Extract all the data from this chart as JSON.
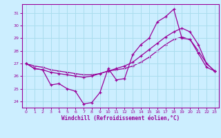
{
  "background_color": "#cceeff",
  "grid_color": "#aaddee",
  "line_color": "#990099",
  "ylim": [
    23.5,
    31.7
  ],
  "xlim": [
    -0.5,
    23.5
  ],
  "yticks": [
    24,
    25,
    26,
    27,
    28,
    29,
    30,
    31
  ],
  "xticks": [
    0,
    1,
    2,
    3,
    4,
    5,
    6,
    7,
    8,
    9,
    10,
    11,
    12,
    13,
    14,
    15,
    16,
    17,
    18,
    19,
    20,
    21,
    22,
    23
  ],
  "xlabel": "Windchill (Refroidissement éolien,°C)",
  "series1_x": [
    0,
    1,
    2,
    3,
    4,
    5,
    6,
    7,
    8,
    9,
    10,
    11,
    12,
    13,
    14,
    15,
    16,
    17,
    18,
    19,
    20,
    21,
    22,
    23
  ],
  "series1_y": [
    27.0,
    26.6,
    26.5,
    25.3,
    25.4,
    25.0,
    24.8,
    23.8,
    23.9,
    24.7,
    26.6,
    25.7,
    25.8,
    27.7,
    28.5,
    29.0,
    30.3,
    30.7,
    31.3,
    29.0,
    28.9,
    27.8,
    26.7,
    26.4
  ],
  "series2_x": [
    0,
    1,
    2,
    3,
    4,
    5,
    6,
    7,
    8,
    9,
    10,
    11,
    12,
    13,
    14,
    15,
    16,
    17,
    18,
    19,
    20,
    21,
    22,
    23
  ],
  "series2_y": [
    27.0,
    26.6,
    26.5,
    26.3,
    26.2,
    26.1,
    26.0,
    25.9,
    26.0,
    26.2,
    26.4,
    26.6,
    26.8,
    27.1,
    27.6,
    28.1,
    28.6,
    29.1,
    29.5,
    29.8,
    29.5,
    28.5,
    27.0,
    26.4
  ],
  "series3_x": [
    0,
    1,
    2,
    3,
    4,
    5,
    6,
    7,
    8,
    9,
    10,
    11,
    12,
    13,
    14,
    15,
    16,
    17,
    18,
    19,
    20,
    21,
    22,
    23
  ],
  "series3_y": [
    27.0,
    26.8,
    26.7,
    26.5,
    26.4,
    26.3,
    26.2,
    26.1,
    26.1,
    26.2,
    26.4,
    26.5,
    26.6,
    26.8,
    27.1,
    27.5,
    28.0,
    28.5,
    28.9,
    29.1,
    28.9,
    28.0,
    27.0,
    26.4
  ]
}
